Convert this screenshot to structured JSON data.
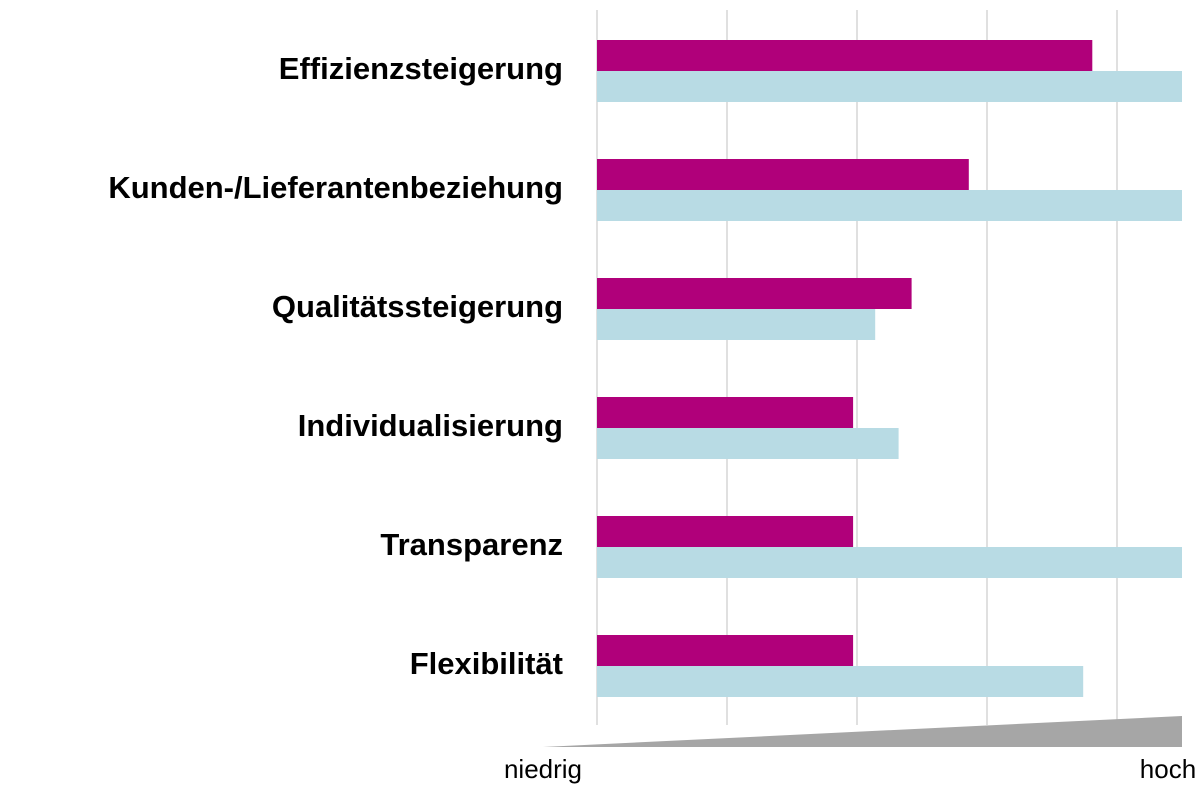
{
  "chart_data": {
    "type": "barh",
    "categories": [
      "Effizienzsteigerung",
      "Kunden-/Lieferantenbeziehung",
      "Qualitätssteigerung",
      "Individualisierung",
      "Transparenz",
      "Flexibilität"
    ],
    "series": [
      {
        "color": "#b0007a",
        "values": [
          3.81,
          2.86,
          2.42,
          1.97,
          1.97,
          1.97
        ]
      },
      {
        "color": "#b8dbe4",
        "values": [
          4.5,
          4.5,
          2.14,
          2.32,
          4.5,
          3.74
        ]
      }
    ],
    "xlim": [
      0,
      4.5
    ],
    "xticks": [
      0,
      1,
      2,
      3,
      4
    ],
    "grid": true,
    "annotations": [
      "niedrig",
      "hoch"
    ]
  }
}
